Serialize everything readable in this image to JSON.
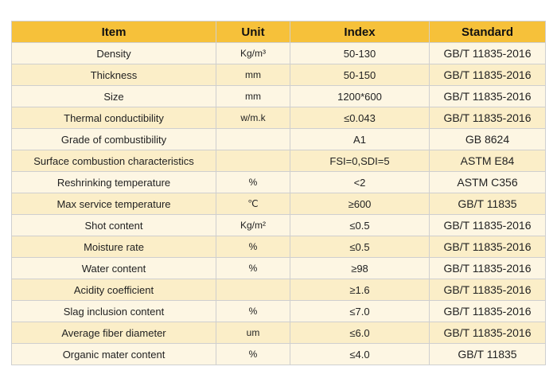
{
  "table": {
    "headers": [
      "Item",
      "Unit",
      "Index",
      "Standard"
    ],
    "rows": [
      [
        "Density",
        "Kg/m³",
        "50-130",
        "GB/T 11835-2016"
      ],
      [
        "Thickness",
        "mm",
        "50-150",
        "GB/T 11835-2016"
      ],
      [
        "Size",
        "mm",
        "1200*600",
        "GB/T 11835-2016"
      ],
      [
        "Thermal conductibility",
        "w/m.k",
        "≤0.043",
        "GB/T 11835-2016"
      ],
      [
        "Grade of combustibility",
        "",
        "A1",
        "GB 8624"
      ],
      [
        "Surface combustion characteristics",
        "",
        "FSI=0,SDI=5",
        "ASTM E84"
      ],
      [
        "Reshrinking temperature",
        "%",
        "<2",
        "ASTM C356"
      ],
      [
        "Max service temperature",
        "℃",
        "≥600",
        "GB/T 11835"
      ],
      [
        "Shot content",
        "Kg/m²",
        "≤0.5",
        "GB/T 11835-2016"
      ],
      [
        "Moisture rate",
        "%",
        "≤0.5",
        "GB/T 11835-2016"
      ],
      [
        "Water content",
        "%",
        "≥98",
        "GB/T 11835-2016"
      ],
      [
        "Acidity coefficient",
        "",
        "≥1.6",
        "GB/T 11835-2016"
      ],
      [
        "Slag inclusion content",
        "%",
        "≤7.0",
        "GB/T 11835-2016"
      ],
      [
        "Average fiber diameter",
        "um",
        "≤6.0",
        "GB/T 11835-2016"
      ],
      [
        "Organic mater content",
        "%",
        "≤4.0",
        "GB/T 11835"
      ]
    ]
  },
  "colors": {
    "header_bg": "#f6c13a",
    "row_bg_light": "#fdf6e3",
    "row_bg_dark": "#fbeec8",
    "border": "#cfcfcf"
  }
}
